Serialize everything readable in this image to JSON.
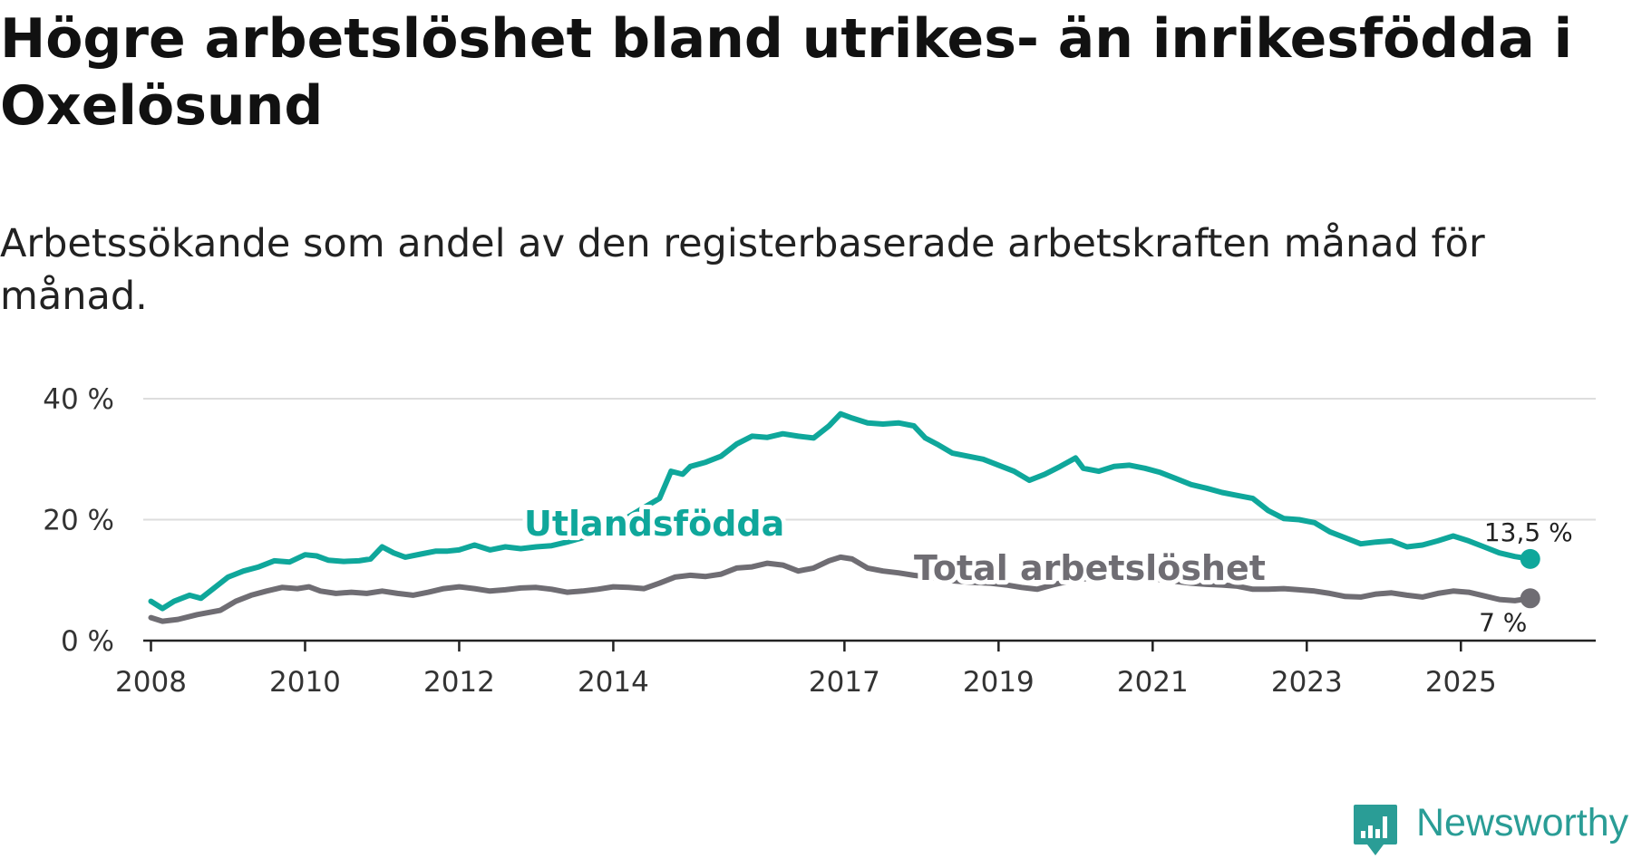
{
  "header": {
    "title": "Högre arbetslöshet bland utrikes- än inrikesfödda i Oxelösund",
    "subtitle": "Arbetssökande som andel av den registerbaserade arbetskraften månad för månad."
  },
  "brand": {
    "name": "Newsworthy",
    "color": "#2a9d96"
  },
  "colors": {
    "foreign": "#0fa79b",
    "total": "#6f6d73",
    "grid": "#dddddd",
    "axis": "#222222"
  },
  "chart_data": {
    "type": "line",
    "title": "Högre arbetslöshet bland utrikes- än inrikesfödda i Oxelösund",
    "subtitle": "Arbetssökande som andel av den registerbaserade arbetskraften månad för månad.",
    "xlabel": "",
    "ylabel": "",
    "xlim": [
      2007.9,
      2026.75
    ],
    "ylim": [
      0,
      40
    ],
    "grid": true,
    "y_ticks": [
      0,
      20,
      40
    ],
    "y_tick_labels": [
      "0 %",
      "20 %",
      "40 %"
    ],
    "x_ticks": [
      2008,
      2010,
      2012,
      2014,
      2017,
      2019,
      2021,
      2023,
      2025
    ],
    "x_tick_labels": [
      "2008",
      "2010",
      "2012",
      "2014",
      "2017",
      "2019",
      "2021",
      "2023",
      "2025"
    ],
    "series": [
      {
        "name": "Utlandsfödda",
        "end_label": "13,5 %",
        "points": [
          [
            2008.0,
            6.5
          ],
          [
            2008.15,
            5.3
          ],
          [
            2008.3,
            6.5
          ],
          [
            2008.5,
            7.5
          ],
          [
            2008.65,
            7.0
          ],
          [
            2008.8,
            8.5
          ],
          [
            2009.0,
            10.5
          ],
          [
            2009.2,
            11.5
          ],
          [
            2009.4,
            12.2
          ],
          [
            2009.6,
            13.2
          ],
          [
            2009.8,
            13.0
          ],
          [
            2010.0,
            14.2
          ],
          [
            2010.15,
            14.0
          ],
          [
            2010.3,
            13.3
          ],
          [
            2010.5,
            13.1
          ],
          [
            2010.7,
            13.2
          ],
          [
            2010.85,
            13.5
          ],
          [
            2011.0,
            15.5
          ],
          [
            2011.15,
            14.5
          ],
          [
            2011.3,
            13.8
          ],
          [
            2011.5,
            14.3
          ],
          [
            2011.7,
            14.8
          ],
          [
            2011.85,
            14.8
          ],
          [
            2012.0,
            15.0
          ],
          [
            2012.2,
            15.8
          ],
          [
            2012.4,
            15.0
          ],
          [
            2012.6,
            15.5
          ],
          [
            2012.8,
            15.2
          ],
          [
            2013.0,
            15.5
          ],
          [
            2013.2,
            15.7
          ],
          [
            2013.4,
            16.3
          ],
          [
            2013.6,
            17.0
          ],
          [
            2013.8,
            18.0
          ],
          [
            2014.0,
            19.0
          ],
          [
            2014.2,
            20.5
          ],
          [
            2014.4,
            22.0
          ],
          [
            2014.6,
            23.5
          ],
          [
            2014.75,
            28.0
          ],
          [
            2014.9,
            27.5
          ],
          [
            2015.0,
            28.8
          ],
          [
            2015.2,
            29.5
          ],
          [
            2015.4,
            30.5
          ],
          [
            2015.6,
            32.5
          ],
          [
            2015.8,
            33.8
          ],
          [
            2016.0,
            33.6
          ],
          [
            2016.2,
            34.2
          ],
          [
            2016.4,
            33.8
          ],
          [
            2016.6,
            33.5
          ],
          [
            2016.8,
            35.5
          ],
          [
            2016.95,
            37.5
          ],
          [
            2017.1,
            36.8
          ],
          [
            2017.3,
            36.0
          ],
          [
            2017.5,
            35.8
          ],
          [
            2017.7,
            36.0
          ],
          [
            2017.9,
            35.5
          ],
          [
            2018.05,
            33.5
          ],
          [
            2018.2,
            32.5
          ],
          [
            2018.4,
            31.0
          ],
          [
            2018.6,
            30.5
          ],
          [
            2018.8,
            30.0
          ],
          [
            2019.0,
            29.0
          ],
          [
            2019.2,
            28.0
          ],
          [
            2019.4,
            26.5
          ],
          [
            2019.6,
            27.5
          ],
          [
            2019.8,
            28.8
          ],
          [
            2020.0,
            30.2
          ],
          [
            2020.1,
            28.5
          ],
          [
            2020.3,
            28.0
          ],
          [
            2020.5,
            28.8
          ],
          [
            2020.7,
            29.0
          ],
          [
            2020.9,
            28.5
          ],
          [
            2021.1,
            27.8
          ],
          [
            2021.3,
            26.8
          ],
          [
            2021.5,
            25.8
          ],
          [
            2021.7,
            25.2
          ],
          [
            2021.9,
            24.5
          ],
          [
            2022.1,
            24.0
          ],
          [
            2022.3,
            23.5
          ],
          [
            2022.5,
            21.5
          ],
          [
            2022.7,
            20.2
          ],
          [
            2022.9,
            20.0
          ],
          [
            2023.1,
            19.5
          ],
          [
            2023.3,
            18.0
          ],
          [
            2023.5,
            17.0
          ],
          [
            2023.7,
            16.0
          ],
          [
            2023.9,
            16.3
          ],
          [
            2024.1,
            16.5
          ],
          [
            2024.3,
            15.5
          ],
          [
            2024.5,
            15.8
          ],
          [
            2024.7,
            16.5
          ],
          [
            2024.9,
            17.3
          ],
          [
            2025.1,
            16.5
          ],
          [
            2025.3,
            15.5
          ],
          [
            2025.5,
            14.5
          ],
          [
            2025.7,
            13.9
          ],
          [
            2025.9,
            13.5
          ]
        ]
      },
      {
        "name": "Total arbetslöshet",
        "end_label": "7 %",
        "points": [
          [
            2008.0,
            3.8
          ],
          [
            2008.15,
            3.2
          ],
          [
            2008.35,
            3.5
          ],
          [
            2008.6,
            4.3
          ],
          [
            2008.9,
            5.0
          ],
          [
            2009.1,
            6.5
          ],
          [
            2009.3,
            7.5
          ],
          [
            2009.5,
            8.2
          ],
          [
            2009.7,
            8.8
          ],
          [
            2009.9,
            8.6
          ],
          [
            2010.05,
            8.9
          ],
          [
            2010.2,
            8.2
          ],
          [
            2010.4,
            7.8
          ],
          [
            2010.6,
            8.0
          ],
          [
            2010.8,
            7.8
          ],
          [
            2011.0,
            8.2
          ],
          [
            2011.2,
            7.8
          ],
          [
            2011.4,
            7.5
          ],
          [
            2011.6,
            8.0
          ],
          [
            2011.8,
            8.6
          ],
          [
            2012.0,
            8.9
          ],
          [
            2012.2,
            8.6
          ],
          [
            2012.4,
            8.2
          ],
          [
            2012.6,
            8.4
          ],
          [
            2012.8,
            8.7
          ],
          [
            2013.0,
            8.8
          ],
          [
            2013.2,
            8.5
          ],
          [
            2013.4,
            8.0
          ],
          [
            2013.6,
            8.2
          ],
          [
            2013.8,
            8.5
          ],
          [
            2014.0,
            8.9
          ],
          [
            2014.2,
            8.8
          ],
          [
            2014.4,
            8.6
          ],
          [
            2014.6,
            9.5
          ],
          [
            2014.8,
            10.5
          ],
          [
            2015.0,
            10.8
          ],
          [
            2015.2,
            10.6
          ],
          [
            2015.4,
            11.0
          ],
          [
            2015.6,
            12.0
          ],
          [
            2015.8,
            12.2
          ],
          [
            2016.0,
            12.8
          ],
          [
            2016.2,
            12.5
          ],
          [
            2016.4,
            11.5
          ],
          [
            2016.6,
            12.0
          ],
          [
            2016.8,
            13.2
          ],
          [
            2016.95,
            13.8
          ],
          [
            2017.1,
            13.5
          ],
          [
            2017.3,
            12.0
          ],
          [
            2017.5,
            11.5
          ],
          [
            2017.7,
            11.2
          ],
          [
            2017.9,
            10.8
          ],
          [
            2018.1,
            10.5
          ],
          [
            2018.3,
            10.0
          ],
          [
            2018.5,
            9.8
          ],
          [
            2018.7,
            9.6
          ],
          [
            2018.9,
            9.5
          ],
          [
            2019.1,
            9.2
          ],
          [
            2019.3,
            8.8
          ],
          [
            2019.5,
            8.5
          ],
          [
            2019.7,
            9.2
          ],
          [
            2019.9,
            9.8
          ],
          [
            2020.1,
            10.2
          ],
          [
            2020.3,
            10.5
          ],
          [
            2020.5,
            10.6
          ],
          [
            2020.7,
            10.4
          ],
          [
            2020.9,
            10.3
          ],
          [
            2021.1,
            10.1
          ],
          [
            2021.3,
            9.8
          ],
          [
            2021.5,
            9.5
          ],
          [
            2021.7,
            9.3
          ],
          [
            2021.9,
            9.2
          ],
          [
            2022.1,
            9.0
          ],
          [
            2022.3,
            8.5
          ],
          [
            2022.5,
            8.5
          ],
          [
            2022.7,
            8.6
          ],
          [
            2022.9,
            8.4
          ],
          [
            2023.1,
            8.2
          ],
          [
            2023.3,
            7.8
          ],
          [
            2023.5,
            7.3
          ],
          [
            2023.7,
            7.2
          ],
          [
            2023.9,
            7.7
          ],
          [
            2024.1,
            7.9
          ],
          [
            2024.3,
            7.5
          ],
          [
            2024.5,
            7.2
          ],
          [
            2024.7,
            7.8
          ],
          [
            2024.9,
            8.2
          ],
          [
            2025.1,
            8.0
          ],
          [
            2025.3,
            7.4
          ],
          [
            2025.5,
            6.8
          ],
          [
            2025.7,
            6.6
          ],
          [
            2025.9,
            7.0
          ]
        ]
      }
    ]
  }
}
